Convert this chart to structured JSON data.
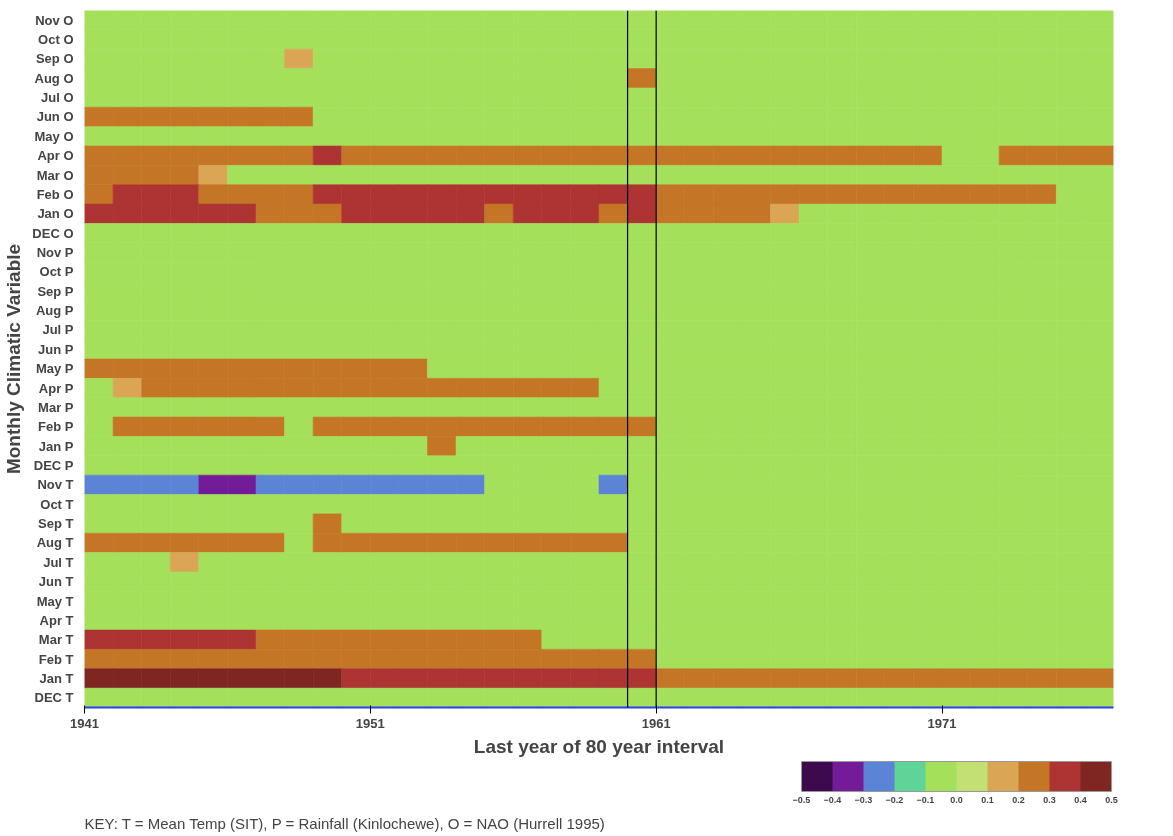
{
  "chart_data": {
    "type": "heatmap",
    "xlabel": "Last year of 80 year interval",
    "ylabel": "Monthly Climatic Variable",
    "annotations": [
      "KEY: T = Mean Temp (SIT), P = Rainfall (Kinlochewe), O = NAO (Hurrell 1995)"
    ],
    "x": [
      1941.5,
      1942.5,
      1943.5,
      1944.5,
      1945.5,
      1946.5,
      1947.5,
      1948.5,
      1949.5,
      1950.5,
      1951.5,
      1952.5,
      1953.5,
      1954.5,
      1955.5,
      1956.5,
      1957.5,
      1958.5,
      1959.5,
      1960.5,
      1961.5,
      1962.5,
      1963.5,
      1964.5,
      1965.5,
      1966.5,
      1967.5,
      1968.5,
      1969.5,
      1970.5,
      1971.5,
      1972.5,
      1973.5,
      1974.5,
      1975.5,
      1976.5
    ],
    "xlim": [
      1941,
      1977
    ],
    "xticks": [
      1941,
      1951,
      1961,
      1971
    ],
    "y_categories": [
      "Nov O",
      "Oct O",
      "Sep O",
      "Aug O",
      "Jul O",
      "Jun O",
      "May O",
      "Apr O",
      "Mar O",
      "Feb O",
      "Jan O",
      "DEC O",
      "Nov P",
      "Oct P",
      "Sep P",
      "Aug P",
      "Jul P",
      "Jun P",
      "May P",
      "Apr P",
      "Mar P",
      "Feb P",
      "Jan P",
      "DEC P",
      "Nov T",
      "Oct T",
      "Sep T",
      "Aug T",
      "Jul T",
      "Jun T",
      "May T",
      "Apr T",
      "Mar T",
      "Feb T",
      "Jan T",
      "DEC T"
    ],
    "cells": [
      [
        -0.05,
        -0.05,
        -0.05,
        -0.05,
        -0.05,
        -0.05,
        -0.05,
        -0.05,
        -0.05,
        -0.05,
        -0.05,
        -0.05,
        -0.05,
        -0.05,
        -0.05,
        -0.05,
        -0.05,
        -0.05,
        -0.05,
        -0.05,
        -0.05,
        -0.05,
        -0.05,
        -0.05,
        -0.05,
        -0.05,
        -0.05,
        -0.05,
        -0.05,
        -0.05,
        -0.05,
        -0.05,
        -0.05,
        -0.05,
        -0.05,
        -0.05
      ],
      [
        -0.05,
        -0.05,
        -0.05,
        -0.05,
        -0.05,
        -0.05,
        -0.05,
        -0.05,
        -0.05,
        -0.05,
        -0.05,
        -0.05,
        -0.05,
        -0.05,
        -0.05,
        -0.05,
        -0.05,
        -0.05,
        -0.05,
        -0.05,
        -0.05,
        -0.05,
        -0.05,
        -0.05,
        -0.05,
        -0.05,
        -0.05,
        -0.05,
        -0.05,
        -0.05,
        -0.05,
        -0.05,
        -0.05,
        -0.05,
        -0.05,
        -0.05
      ],
      [
        -0.05,
        -0.05,
        -0.05,
        -0.05,
        -0.05,
        -0.05,
        -0.05,
        0.15,
        -0.05,
        -0.05,
        -0.05,
        -0.05,
        -0.05,
        -0.05,
        -0.05,
        -0.05,
        -0.05,
        -0.05,
        -0.05,
        -0.05,
        -0.05,
        -0.05,
        -0.05,
        -0.05,
        -0.05,
        -0.05,
        -0.05,
        -0.05,
        -0.05,
        -0.05,
        -0.05,
        -0.05,
        -0.05,
        -0.05,
        -0.05,
        -0.05
      ],
      [
        -0.05,
        -0.05,
        -0.05,
        -0.05,
        -0.05,
        -0.05,
        -0.05,
        -0.05,
        -0.05,
        -0.05,
        -0.05,
        -0.05,
        -0.05,
        -0.05,
        -0.05,
        -0.05,
        -0.05,
        -0.05,
        -0.05,
        0.25,
        -0.05,
        -0.05,
        -0.05,
        -0.05,
        -0.05,
        -0.05,
        -0.05,
        -0.05,
        -0.05,
        -0.05,
        -0.05,
        -0.05,
        -0.05,
        -0.05,
        -0.05,
        -0.05
      ],
      [
        -0.05,
        -0.05,
        -0.05,
        -0.05,
        -0.05,
        -0.05,
        -0.05,
        -0.05,
        -0.05,
        -0.05,
        -0.05,
        -0.05,
        -0.05,
        -0.05,
        -0.05,
        -0.05,
        -0.05,
        -0.05,
        -0.05,
        -0.05,
        -0.05,
        -0.05,
        -0.05,
        -0.05,
        -0.05,
        -0.05,
        -0.05,
        -0.05,
        -0.05,
        -0.05,
        -0.05,
        -0.05,
        -0.05,
        -0.05,
        -0.05,
        -0.05
      ],
      [
        0.25,
        0.25,
        0.25,
        0.25,
        0.25,
        0.25,
        0.25,
        0.25,
        -0.05,
        -0.05,
        -0.05,
        -0.05,
        -0.05,
        -0.05,
        -0.05,
        -0.05,
        -0.05,
        -0.05,
        -0.05,
        -0.05,
        -0.05,
        -0.05,
        -0.05,
        -0.05,
        -0.05,
        -0.05,
        -0.05,
        -0.05,
        -0.05,
        -0.05,
        -0.05,
        -0.05,
        -0.05,
        -0.05,
        -0.05,
        -0.05
      ],
      [
        -0.05,
        -0.05,
        -0.05,
        -0.05,
        -0.05,
        -0.05,
        -0.05,
        -0.05,
        -0.05,
        -0.05,
        -0.05,
        -0.05,
        -0.05,
        -0.05,
        -0.05,
        -0.05,
        -0.05,
        -0.05,
        -0.05,
        -0.05,
        -0.05,
        -0.05,
        -0.05,
        -0.05,
        -0.05,
        -0.05,
        -0.05,
        -0.05,
        -0.05,
        -0.05,
        -0.05,
        -0.05,
        -0.05,
        -0.05,
        -0.05,
        -0.05
      ],
      [
        0.25,
        0.25,
        0.25,
        0.25,
        0.25,
        0.25,
        0.25,
        0.25,
        0.35,
        0.25,
        0.25,
        0.25,
        0.25,
        0.25,
        0.25,
        0.25,
        0.25,
        0.25,
        0.25,
        0.25,
        0.25,
        0.25,
        0.25,
        0.25,
        0.25,
        0.25,
        0.25,
        0.25,
        0.25,
        0.25,
        -0.05,
        -0.05,
        0.25,
        0.25,
        0.25,
        0.25
      ],
      [
        0.25,
        0.25,
        0.25,
        0.25,
        0.15,
        -0.05,
        -0.05,
        -0.05,
        -0.05,
        -0.05,
        -0.05,
        -0.05,
        -0.05,
        -0.05,
        -0.05,
        -0.05,
        -0.05,
        -0.05,
        -0.05,
        -0.05,
        -0.05,
        -0.05,
        -0.05,
        -0.05,
        -0.05,
        -0.05,
        -0.05,
        -0.05,
        -0.05,
        -0.05,
        -0.05,
        -0.05,
        -0.05,
        -0.05,
        -0.05,
        -0.05
      ],
      [
        0.25,
        0.35,
        0.35,
        0.35,
        0.25,
        0.25,
        0.25,
        0.25,
        0.35,
        0.35,
        0.35,
        0.35,
        0.35,
        0.35,
        0.35,
        0.35,
        0.35,
        0.35,
        0.35,
        0.35,
        0.25,
        0.25,
        0.25,
        0.25,
        0.25,
        0.25,
        0.25,
        0.25,
        0.25,
        0.25,
        0.25,
        0.25,
        0.25,
        0.25,
        -0.05,
        -0.05
      ],
      [
        0.35,
        0.35,
        0.35,
        0.35,
        0.35,
        0.35,
        0.25,
        0.25,
        0.25,
        0.35,
        0.35,
        0.35,
        0.35,
        0.35,
        0.25,
        0.35,
        0.35,
        0.35,
        0.25,
        0.35,
        0.25,
        0.25,
        0.25,
        0.25,
        0.15,
        -0.05,
        -0.05,
        -0.05,
        -0.05,
        -0.05,
        -0.05,
        -0.05,
        -0.05,
        -0.05,
        -0.05,
        -0.05
      ],
      [
        -0.05,
        -0.05,
        -0.05,
        -0.05,
        -0.05,
        -0.05,
        -0.05,
        -0.05,
        -0.05,
        -0.05,
        -0.05,
        -0.05,
        -0.05,
        -0.05,
        -0.05,
        -0.05,
        -0.05,
        -0.05,
        -0.05,
        -0.05,
        -0.05,
        -0.05,
        -0.05,
        -0.05,
        -0.05,
        -0.05,
        -0.05,
        -0.05,
        -0.05,
        -0.05,
        -0.05,
        -0.05,
        -0.05,
        -0.05,
        -0.05,
        -0.05
      ],
      [
        -0.05,
        -0.05,
        -0.05,
        -0.05,
        -0.05,
        -0.05,
        -0.05,
        -0.05,
        -0.05,
        -0.05,
        -0.05,
        -0.05,
        -0.05,
        -0.05,
        -0.05,
        -0.05,
        -0.05,
        -0.05,
        -0.05,
        -0.05,
        -0.05,
        -0.05,
        -0.05,
        -0.05,
        -0.05,
        -0.05,
        -0.05,
        -0.05,
        -0.05,
        -0.05,
        -0.05,
        -0.05,
        -0.05,
        -0.05,
        -0.05,
        -0.05
      ],
      [
        -0.05,
        -0.05,
        -0.05,
        -0.05,
        -0.05,
        -0.05,
        -0.05,
        -0.05,
        -0.05,
        -0.05,
        -0.05,
        -0.05,
        -0.05,
        -0.05,
        -0.05,
        -0.05,
        -0.05,
        -0.05,
        -0.05,
        -0.05,
        -0.05,
        -0.05,
        -0.05,
        -0.05,
        -0.05,
        -0.05,
        -0.05,
        -0.05,
        -0.05,
        -0.05,
        -0.05,
        -0.05,
        -0.05,
        -0.05,
        -0.05,
        -0.05
      ],
      [
        -0.05,
        -0.05,
        -0.05,
        -0.05,
        -0.05,
        -0.05,
        -0.05,
        -0.05,
        -0.05,
        -0.05,
        -0.05,
        -0.05,
        -0.05,
        -0.05,
        -0.05,
        -0.05,
        -0.05,
        -0.05,
        -0.05,
        -0.05,
        -0.05,
        -0.05,
        -0.05,
        -0.05,
        -0.05,
        -0.05,
        -0.05,
        -0.05,
        -0.05,
        -0.05,
        -0.05,
        -0.05,
        -0.05,
        -0.05,
        -0.05,
        -0.05
      ],
      [
        -0.05,
        -0.05,
        -0.05,
        -0.05,
        -0.05,
        -0.05,
        -0.05,
        -0.05,
        -0.05,
        -0.05,
        -0.05,
        -0.05,
        -0.05,
        -0.05,
        -0.05,
        -0.05,
        -0.05,
        -0.05,
        -0.05,
        -0.05,
        -0.05,
        -0.05,
        -0.05,
        -0.05,
        -0.05,
        -0.05,
        -0.05,
        -0.05,
        -0.05,
        -0.05,
        -0.05,
        -0.05,
        -0.05,
        -0.05,
        -0.05,
        -0.05
      ],
      [
        -0.05,
        -0.05,
        -0.05,
        -0.05,
        -0.05,
        -0.05,
        -0.05,
        -0.05,
        -0.05,
        -0.05,
        -0.05,
        -0.05,
        -0.05,
        -0.05,
        -0.05,
        -0.05,
        -0.05,
        -0.05,
        -0.05,
        -0.05,
        -0.05,
        -0.05,
        -0.05,
        -0.05,
        -0.05,
        -0.05,
        -0.05,
        -0.05,
        -0.05,
        -0.05,
        -0.05,
        -0.05,
        -0.05,
        -0.05,
        -0.05,
        -0.05
      ],
      [
        -0.05,
        -0.05,
        -0.05,
        -0.05,
        -0.05,
        -0.05,
        -0.05,
        -0.05,
        -0.05,
        -0.05,
        -0.05,
        -0.05,
        -0.05,
        -0.05,
        -0.05,
        -0.05,
        -0.05,
        -0.05,
        -0.05,
        -0.05,
        -0.05,
        -0.05,
        -0.05,
        -0.05,
        -0.05,
        -0.05,
        -0.05,
        -0.05,
        -0.05,
        -0.05,
        -0.05,
        -0.05,
        -0.05,
        -0.05,
        -0.05,
        -0.05
      ],
      [
        0.25,
        0.25,
        0.25,
        0.25,
        0.25,
        0.25,
        0.25,
        0.25,
        0.25,
        0.25,
        0.25,
        0.25,
        -0.05,
        -0.05,
        -0.05,
        -0.05,
        -0.05,
        -0.05,
        -0.05,
        -0.05,
        -0.05,
        -0.05,
        -0.05,
        -0.05,
        -0.05,
        -0.05,
        -0.05,
        -0.05,
        -0.05,
        -0.05,
        -0.05,
        -0.05,
        -0.05,
        -0.05,
        -0.05,
        -0.05
      ],
      [
        -0.05,
        0.15,
        0.25,
        0.25,
        0.25,
        0.25,
        0.25,
        0.25,
        0.25,
        0.25,
        0.25,
        0.25,
        0.25,
        0.25,
        0.25,
        0.25,
        0.25,
        0.25,
        -0.05,
        -0.05,
        -0.05,
        -0.05,
        -0.05,
        -0.05,
        -0.05,
        -0.05,
        -0.05,
        -0.05,
        -0.05,
        -0.05,
        -0.05,
        -0.05,
        -0.05,
        -0.05,
        -0.05,
        -0.05
      ],
      [
        -0.05,
        -0.05,
        -0.05,
        -0.05,
        -0.05,
        -0.05,
        -0.05,
        -0.05,
        -0.05,
        -0.05,
        -0.05,
        -0.05,
        -0.05,
        -0.05,
        -0.05,
        -0.05,
        -0.05,
        -0.05,
        -0.05,
        -0.05,
        -0.05,
        -0.05,
        -0.05,
        -0.05,
        -0.05,
        -0.05,
        -0.05,
        -0.05,
        -0.05,
        -0.05,
        -0.05,
        -0.05,
        -0.05,
        -0.05,
        -0.05,
        -0.05
      ],
      [
        -0.05,
        0.25,
        0.25,
        0.25,
        0.25,
        0.25,
        0.25,
        -0.05,
        0.25,
        0.25,
        0.25,
        0.25,
        0.25,
        0.25,
        0.25,
        0.25,
        0.25,
        0.25,
        0.25,
        0.25,
        -0.05,
        -0.05,
        -0.05,
        -0.05,
        -0.05,
        -0.05,
        -0.05,
        -0.05,
        -0.05,
        -0.05,
        -0.05,
        -0.05,
        -0.05,
        -0.05,
        -0.05,
        -0.05
      ],
      [
        -0.05,
        -0.05,
        -0.05,
        -0.05,
        -0.05,
        -0.05,
        -0.05,
        -0.05,
        -0.05,
        -0.05,
        -0.05,
        -0.05,
        0.25,
        -0.05,
        -0.05,
        -0.05,
        -0.05,
        -0.05,
        -0.05,
        -0.05,
        -0.05,
        -0.05,
        -0.05,
        -0.05,
        -0.05,
        -0.05,
        -0.05,
        -0.05,
        -0.05,
        -0.05,
        -0.05,
        -0.05,
        -0.05,
        -0.05,
        -0.05,
        -0.05
      ],
      [
        -0.05,
        -0.05,
        -0.05,
        -0.05,
        -0.05,
        -0.05,
        -0.05,
        -0.05,
        -0.05,
        -0.05,
        -0.05,
        -0.05,
        -0.05,
        -0.05,
        -0.05,
        -0.05,
        -0.05,
        -0.05,
        -0.05,
        -0.05,
        -0.05,
        -0.05,
        -0.05,
        -0.05,
        -0.05,
        -0.05,
        -0.05,
        -0.05,
        -0.05,
        -0.05,
        -0.05,
        -0.05,
        -0.05,
        -0.05,
        -0.05,
        -0.05
      ],
      [
        -0.25,
        -0.25,
        -0.25,
        -0.25,
        -0.35,
        -0.35,
        -0.25,
        -0.25,
        -0.25,
        -0.25,
        -0.25,
        -0.25,
        -0.25,
        -0.25,
        -0.05,
        -0.05,
        -0.05,
        -0.05,
        -0.25,
        -0.05,
        -0.05,
        -0.05,
        -0.05,
        -0.05,
        -0.05,
        -0.05,
        -0.05,
        -0.05,
        -0.05,
        -0.05,
        -0.05,
        -0.05,
        -0.05,
        -0.05,
        -0.05,
        -0.05
      ],
      [
        -0.05,
        -0.05,
        -0.05,
        -0.05,
        -0.05,
        -0.05,
        -0.05,
        -0.05,
        -0.05,
        -0.05,
        -0.05,
        -0.05,
        -0.05,
        -0.05,
        -0.05,
        -0.05,
        -0.05,
        -0.05,
        -0.05,
        -0.05,
        -0.05,
        -0.05,
        -0.05,
        -0.05,
        -0.05,
        -0.05,
        -0.05,
        -0.05,
        -0.05,
        -0.05,
        -0.05,
        -0.05,
        -0.05,
        -0.05,
        -0.05,
        -0.05
      ],
      [
        -0.05,
        -0.05,
        -0.05,
        -0.05,
        -0.05,
        -0.05,
        -0.05,
        -0.05,
        0.25,
        -0.05,
        -0.05,
        -0.05,
        -0.05,
        -0.05,
        -0.05,
        -0.05,
        -0.05,
        -0.05,
        -0.05,
        -0.05,
        -0.05,
        -0.05,
        -0.05,
        -0.05,
        -0.05,
        -0.05,
        -0.05,
        -0.05,
        -0.05,
        -0.05,
        -0.05,
        -0.05,
        -0.05,
        -0.05,
        -0.05,
        -0.05
      ],
      [
        0.25,
        0.25,
        0.25,
        0.25,
        0.25,
        0.25,
        0.25,
        -0.05,
        0.25,
        0.25,
        0.25,
        0.25,
        0.25,
        0.25,
        0.25,
        0.25,
        0.25,
        0.25,
        0.25,
        -0.05,
        -0.05,
        -0.05,
        -0.05,
        -0.05,
        -0.05,
        -0.05,
        -0.05,
        -0.05,
        -0.05,
        -0.05,
        -0.05,
        -0.05,
        -0.05,
        -0.05,
        -0.05,
        -0.05
      ],
      [
        -0.05,
        -0.05,
        -0.05,
        0.15,
        -0.05,
        -0.05,
        -0.05,
        -0.05,
        -0.05,
        -0.05,
        -0.05,
        -0.05,
        -0.05,
        -0.05,
        -0.05,
        -0.05,
        -0.05,
        -0.05,
        -0.05,
        -0.05,
        -0.05,
        -0.05,
        -0.05,
        -0.05,
        -0.05,
        -0.05,
        -0.05,
        -0.05,
        -0.05,
        -0.05,
        -0.05,
        -0.05,
        -0.05,
        -0.05,
        -0.05,
        -0.05
      ],
      [
        -0.05,
        -0.05,
        -0.05,
        -0.05,
        -0.05,
        -0.05,
        -0.05,
        -0.05,
        -0.05,
        -0.05,
        -0.05,
        -0.05,
        -0.05,
        -0.05,
        -0.05,
        -0.05,
        -0.05,
        -0.05,
        -0.05,
        -0.05,
        -0.05,
        -0.05,
        -0.05,
        -0.05,
        -0.05,
        -0.05,
        -0.05,
        -0.05,
        -0.05,
        -0.05,
        -0.05,
        -0.05,
        -0.05,
        -0.05,
        -0.05,
        -0.05
      ],
      [
        -0.05,
        -0.05,
        -0.05,
        -0.05,
        -0.05,
        -0.05,
        -0.05,
        -0.05,
        -0.05,
        -0.05,
        -0.05,
        -0.05,
        -0.05,
        -0.05,
        -0.05,
        -0.05,
        -0.05,
        -0.05,
        -0.05,
        -0.05,
        -0.05,
        -0.05,
        -0.05,
        -0.05,
        -0.05,
        -0.05,
        -0.05,
        -0.05,
        -0.05,
        -0.05,
        -0.05,
        -0.05,
        -0.05,
        -0.05,
        -0.05,
        -0.05
      ],
      [
        -0.05,
        -0.05,
        -0.05,
        -0.05,
        -0.05,
        -0.05,
        -0.05,
        -0.05,
        -0.05,
        -0.05,
        -0.05,
        -0.05,
        -0.05,
        -0.05,
        -0.05,
        -0.05,
        -0.05,
        -0.05,
        -0.05,
        -0.05,
        -0.05,
        -0.05,
        -0.05,
        -0.05,
        -0.05,
        -0.05,
        -0.05,
        -0.05,
        -0.05,
        -0.05,
        -0.05,
        -0.05,
        -0.05,
        -0.05,
        -0.05,
        -0.05
      ],
      [
        0.35,
        0.35,
        0.35,
        0.35,
        0.35,
        0.35,
        0.25,
        0.25,
        0.25,
        0.25,
        0.25,
        0.25,
        0.25,
        0.25,
        0.25,
        0.25,
        -0.05,
        -0.05,
        -0.05,
        -0.05,
        -0.05,
        -0.05,
        -0.05,
        -0.05,
        -0.05,
        -0.05,
        -0.05,
        -0.05,
        -0.05,
        -0.05,
        -0.05,
        -0.05,
        -0.05,
        -0.05,
        -0.05,
        -0.05
      ],
      [
        0.25,
        0.25,
        0.25,
        0.25,
        0.25,
        0.25,
        0.25,
        0.25,
        0.25,
        0.25,
        0.25,
        0.25,
        0.25,
        0.25,
        0.25,
        0.25,
        0.25,
        0.25,
        0.25,
        0.25,
        -0.05,
        -0.05,
        -0.05,
        -0.05,
        -0.05,
        -0.05,
        -0.05,
        -0.05,
        -0.05,
        -0.05,
        -0.05,
        -0.05,
        -0.05,
        -0.05,
        -0.05,
        -0.05
      ],
      [
        0.45,
        0.45,
        0.45,
        0.45,
        0.45,
        0.45,
        0.45,
        0.45,
        0.45,
        0.35,
        0.35,
        0.35,
        0.35,
        0.35,
        0.35,
        0.35,
        0.35,
        0.35,
        0.35,
        0.35,
        0.25,
        0.25,
        0.25,
        0.25,
        0.25,
        0.25,
        0.25,
        0.25,
        0.25,
        0.25,
        0.25,
        0.25,
        0.25,
        0.25,
        0.25,
        0.25
      ],
      [
        -0.05,
        -0.05,
        -0.05,
        -0.05,
        -0.05,
        -0.05,
        -0.05,
        -0.05,
        -0.05,
        -0.05,
        -0.05,
        -0.05,
        -0.05,
        -0.05,
        -0.05,
        -0.05,
        -0.05,
        -0.05,
        -0.05,
        -0.05,
        -0.05,
        -0.05,
        -0.05,
        -0.05,
        -0.05,
        -0.05,
        -0.05,
        -0.05,
        -0.05,
        -0.05,
        -0.05,
        -0.05,
        -0.05,
        -0.05,
        -0.05,
        -0.05
      ]
    ],
    "clim": [
      -0.5,
      0.5
    ],
    "cticks": [
      -0.5,
      -0.4,
      -0.3,
      -0.2,
      -0.1,
      {
        "value": 0,
        "label": "0.0"
      },
      0.1,
      0.2,
      0.3,
      0.4,
      0.5
    ],
    "colors": [
      "#3d0a4e",
      "#731b99",
      "#5b84d6",
      "#5ed496",
      "#a4e05a",
      "#c3e072",
      "#daa655",
      "#c47626",
      "#ad3433",
      "#7f2522"
    ],
    "ref_lines": [
      {
        "axis": "x",
        "value": 1960,
        "color": "#000000"
      },
      {
        "axis": "x",
        "value": 1961,
        "color": "#000000"
      }
    ]
  }
}
